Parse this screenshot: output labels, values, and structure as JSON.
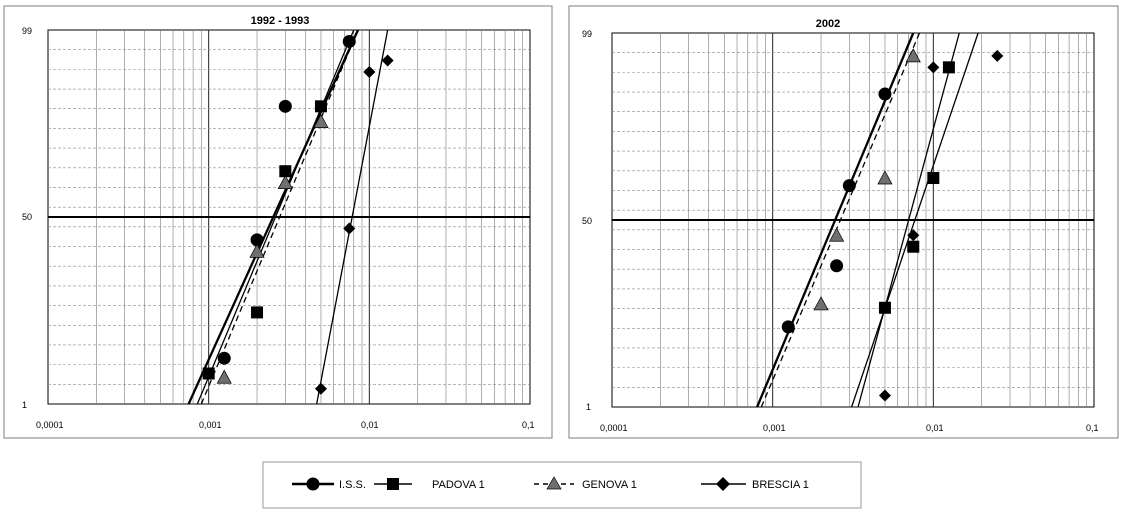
{
  "chart_data": [
    {
      "type": "scatter",
      "title": "1992 - 1993",
      "xscale": "log",
      "xlim": [
        0.0001,
        0.1
      ],
      "ylim": [
        1,
        99
      ],
      "x_ticks": [
        "0,0001",
        "0,001",
        "0,01",
        "0,1"
      ],
      "y_ticks": [
        "1",
        "50",
        "99"
      ],
      "grid": true,
      "series": [
        {
          "name": "I.S.S.",
          "marker": "circle",
          "line": "solid",
          "points": [
            [
              0.00125,
              13
            ],
            [
              0.002,
              44
            ],
            [
              0.003,
              79
            ],
            [
              0.0075,
              96
            ]
          ],
          "fit": [
            [
              0.00075,
              1
            ],
            [
              0.0085,
              99
            ]
          ]
        },
        {
          "name": "PADOVA 1",
          "marker": "square",
          "line": "solid",
          "points": [
            [
              0.001,
              9
            ],
            [
              0.002,
              25
            ],
            [
              0.003,
              62
            ],
            [
              0.005,
              79
            ]
          ],
          "fit": [
            [
              0.00085,
              1
            ],
            [
              0.008,
              99
            ]
          ]
        },
        {
          "name": "GENOVA 1",
          "marker": "triangle",
          "line": "dashed",
          "points": [
            [
              0.00125,
              8
            ],
            [
              0.002,
              41
            ],
            [
              0.003,
              59
            ],
            [
              0.005,
              75
            ]
          ],
          "fit": [
            [
              0.0009,
              1
            ],
            [
              0.0085,
              99
            ]
          ]
        },
        {
          "name": "BRESCIA 1",
          "marker": "diamond",
          "line": "solid",
          "points": [
            [
              0.005,
              5
            ],
            [
              0.0075,
              47
            ],
            [
              0.01,
              88
            ],
            [
              0.013,
              91
            ]
          ],
          "fit": [
            [
              0.0047,
              1
            ],
            [
              0.013,
              99
            ]
          ]
        }
      ]
    },
    {
      "type": "scatter",
      "title": "2002",
      "xscale": "log",
      "xlim": [
        0.0001,
        0.1
      ],
      "ylim": [
        1,
        99
      ],
      "x_ticks": [
        "0,0001",
        "0,001",
        "0,01",
        "0,1"
      ],
      "y_ticks": [
        "1",
        "50",
        "99"
      ],
      "grid": true,
      "series": [
        {
          "name": "I.S.S.",
          "marker": "circle",
          "line": "solid",
          "points": [
            [
              0.00125,
              22
            ],
            [
              0.0025,
              38
            ],
            [
              0.003,
              59
            ],
            [
              0.005,
              83
            ]
          ],
          "fit": [
            [
              0.0008,
              1
            ],
            [
              0.0075,
              99
            ]
          ]
        },
        {
          "name": "PADOVA 1",
          "marker": "square",
          "line": "solid",
          "points": [
            [
              0.005,
              27
            ],
            [
              0.0075,
              43
            ],
            [
              0.01,
              61
            ],
            [
              0.0125,
              90
            ]
          ],
          "fit": [
            [
              0.0031,
              1
            ],
            [
              0.019,
              99
            ]
          ]
        },
        {
          "name": "GENOVA 1",
          "marker": "triangle",
          "line": "dashed",
          "points": [
            [
              0.002,
              28
            ],
            [
              0.0025,
              46
            ],
            [
              0.005,
              61
            ],
            [
              0.0075,
              93
            ]
          ],
          "fit": [
            [
              0.00085,
              1
            ],
            [
              0.0082,
              99
            ]
          ]
        },
        {
          "name": "BRESCIA 1",
          "marker": "diamond",
          "line": "solid",
          "points": [
            [
              0.005,
              4
            ],
            [
              0.0075,
              46
            ],
            [
              0.01,
              90
            ],
            [
              0.025,
              93
            ]
          ],
          "fit": [
            [
              0.0034,
              1
            ],
            [
              0.0145,
              99
            ]
          ]
        }
      ]
    }
  ],
  "legend": {
    "placement": "bottom-center",
    "items": [
      {
        "label": "I.S.S.",
        "marker": "circle",
        "line": "solid"
      },
      {
        "label": "PADOVA 1",
        "marker": "square",
        "line": "solid"
      },
      {
        "label": "GENOVA 1",
        "marker": "triangle",
        "line": "dashed"
      },
      {
        "label": "BRESCIA 1",
        "marker": "diamond",
        "line": "solid"
      }
    ]
  }
}
